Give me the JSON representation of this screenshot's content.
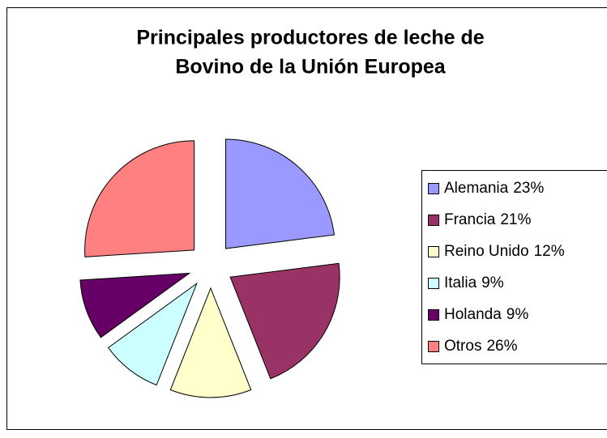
{
  "chart_data": {
    "type": "pie",
    "title": [
      "Principales productores de leche de",
      "Bovino de la Unión Europea"
    ],
    "categories": [
      "Alemania",
      "Francia",
      "Reino Unido",
      "Italia",
      "Holanda",
      "Otros"
    ],
    "values": [
      23,
      21,
      12,
      9,
      9,
      26
    ],
    "value_labels": [
      "23%",
      "21%",
      "12%",
      "9%",
      "9%",
      "26%"
    ],
    "colors": [
      "#9999ff",
      "#993366",
      "#ffffcc",
      "#ccffff",
      "#660066",
      "#ff8080"
    ],
    "exploded": true,
    "legend": "right"
  }
}
